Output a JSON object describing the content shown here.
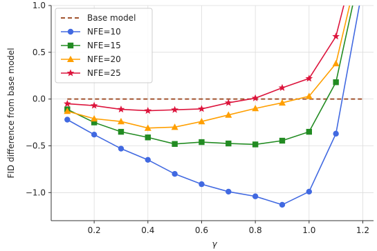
{
  "chart_data": {
    "type": "line",
    "title": "",
    "xlabel": "γ",
    "ylabel": "FID difference from base model",
    "xlim": [
      0.04,
      1.24
    ],
    "ylim": [
      -1.3,
      1.0
    ],
    "xticks": [
      0.2,
      0.4,
      0.6,
      0.8,
      1.0,
      1.2
    ],
    "yticks": [
      -1.0,
      -0.5,
      0.0,
      0.5,
      1.0
    ],
    "xtick_labels": [
      "0.2",
      "0.4",
      "0.6",
      "0.8",
      "1.0",
      "1.2"
    ],
    "ytick_labels": [
      "−1.0",
      "−0.5",
      "0.0",
      "0.5",
      "1.0"
    ],
    "grid": true,
    "legend_position": "top-left",
    "reference_line": {
      "name": "Base model",
      "y": 0.0,
      "x_range": [
        0.1,
        1.2
      ],
      "style": "dashed",
      "color": "#a0522d"
    },
    "series": [
      {
        "name": "NFE=10",
        "color": "#4169e1",
        "marker": "circle",
        "x": [
          0.1,
          0.2,
          0.3,
          0.4,
          0.5,
          0.6,
          0.7,
          0.8,
          0.9,
          1.0,
          1.1,
          1.2
        ],
        "y": [
          -0.22,
          -0.38,
          -0.53,
          -0.65,
          -0.8,
          -0.91,
          -0.99,
          -1.04,
          -1.13,
          -0.99,
          -0.37,
          1.2
        ]
      },
      {
        "name": "NFE=15",
        "color": "#228b22",
        "marker": "square",
        "x": [
          0.1,
          0.2,
          0.3,
          0.4,
          0.5,
          0.6,
          0.7,
          0.8,
          0.9,
          1.0,
          1.1,
          1.2
        ],
        "y": [
          -0.11,
          -0.25,
          -0.35,
          -0.41,
          -0.48,
          -0.46,
          -0.475,
          -0.485,
          -0.445,
          -0.35,
          0.18,
          1.5
        ]
      },
      {
        "name": "NFE=20",
        "color": "#ff9f00",
        "marker": "triangle",
        "x": [
          0.1,
          0.2,
          0.3,
          0.4,
          0.5,
          0.6,
          0.7,
          0.8,
          0.9,
          1.0,
          1.1,
          1.2
        ],
        "y": [
          -0.13,
          -0.21,
          -0.24,
          -0.31,
          -0.3,
          -0.24,
          -0.17,
          -0.1,
          -0.04,
          0.03,
          0.38,
          1.6
        ]
      },
      {
        "name": "NFE=25",
        "color": "#dc143c",
        "marker": "star",
        "x": [
          0.1,
          0.2,
          0.3,
          0.4,
          0.5,
          0.6,
          0.7,
          0.8,
          0.9,
          1.0,
          1.1,
          1.2
        ],
        "y": [
          -0.05,
          -0.07,
          -0.11,
          -0.125,
          -0.115,
          -0.105,
          -0.04,
          0.01,
          0.12,
          0.22,
          0.67,
          1.8
        ]
      }
    ]
  }
}
